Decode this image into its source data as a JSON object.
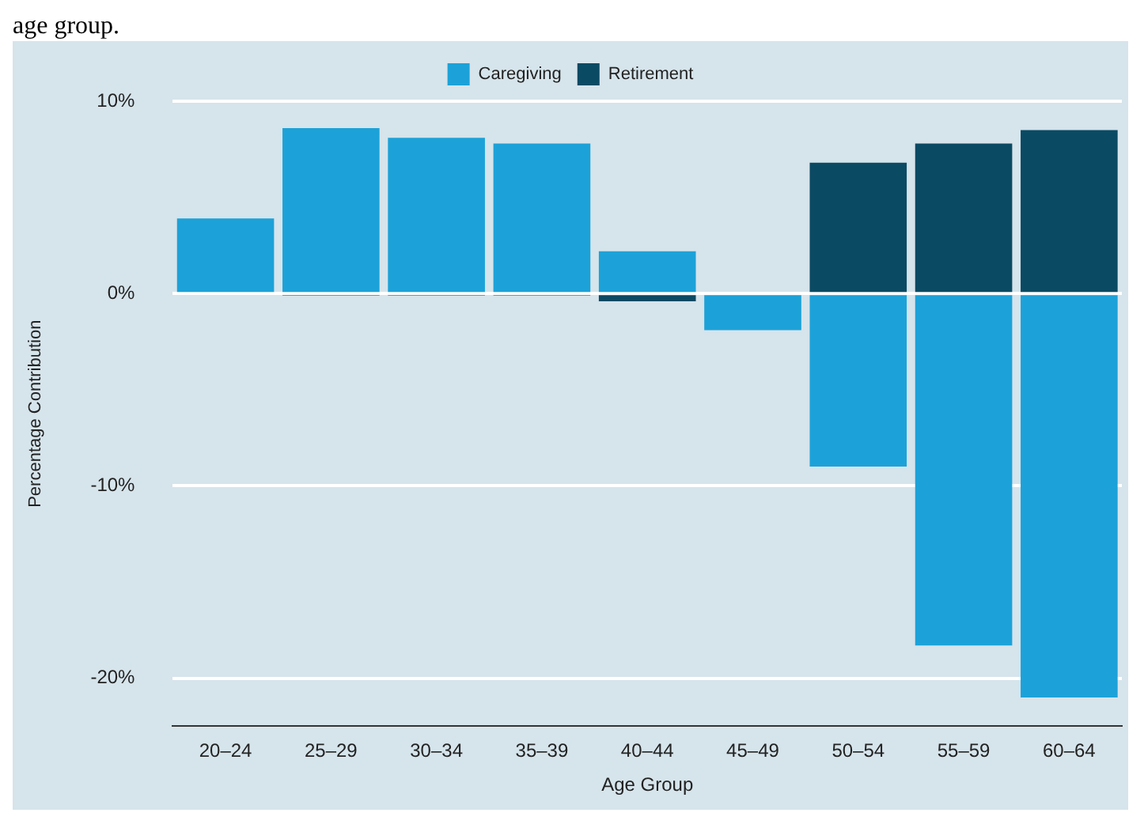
{
  "chart_data": {
    "type": "bar",
    "stacked": true,
    "xlabel": "Age Group",
    "ylabel": "Percentage Contribution",
    "annotations": [
      "age group."
    ],
    "categories": [
      "20–24",
      "25–29",
      "30–34",
      "35–39",
      "40–44",
      "45–49",
      "50–54",
      "55–59",
      "60–64"
    ],
    "series": [
      {
        "name": "Caregiving",
        "color": "#1ca2d8",
        "values": [
          3.9,
          8.6,
          8.1,
          7.8,
          2.2,
          -1.9,
          -9.0,
          -18.3,
          -21.0
        ]
      },
      {
        "name": "Retirement",
        "color": "#0b4a63",
        "values": [
          0,
          -0.1,
          -0.1,
          -0.1,
          -0.4,
          0,
          6.8,
          7.8,
          8.5
        ]
      }
    ],
    "ylim": [
      -22.5,
      10
    ],
    "yticks": [
      {
        "value": -20,
        "label": "-20%"
      },
      {
        "value": -10,
        "label": "-10%"
      },
      {
        "value": 0,
        "label": "0%"
      },
      {
        "value": 10,
        "label": "10%"
      }
    ],
    "grid": "y",
    "legend": "top"
  }
}
